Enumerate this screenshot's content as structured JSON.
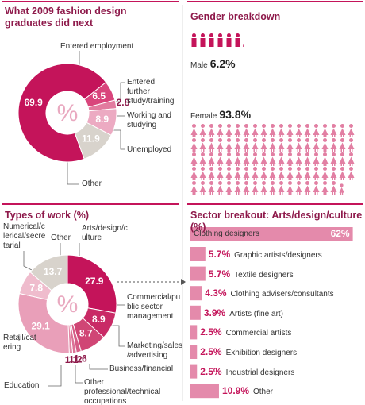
{
  "chart_data": [
    {
      "type": "donut",
      "title": "What 2009 fashion design graduates did next",
      "center_label": "%",
      "categories": [
        "Entered employment",
        "Entered further study/training",
        "Working and studying",
        "Unemployed",
        "Other"
      ],
      "values": [
        69.9,
        6.5,
        2.8,
        8.9,
        11.9
      ],
      "colors": [
        "#c4145a",
        "#d9457c",
        "#e27b9f",
        "#ecaac2",
        "#d8d3cc"
      ]
    },
    {
      "type": "pictogram",
      "title": "Gender breakdown",
      "categories": [
        "Male",
        "Female"
      ],
      "values": [
        6.2,
        93.8
      ],
      "value_labels": [
        "6.2%",
        "93.8%"
      ],
      "colors": [
        "#c4145a",
        "#e27fa3"
      ]
    },
    {
      "type": "donut",
      "title": "Types of work (%)",
      "center_label": "%",
      "categories": [
        "Arts/design/culture",
        "Commercial/public sector management",
        "Marketing/sales/advertising",
        "Business/financial",
        "Other professional/technical occupations",
        "Education",
        "Retail/catering",
        "Numerical/clerical/secretarial",
        "Other"
      ],
      "values": [
        27.9,
        8.9,
        8.7,
        1.6,
        1.2,
        1.1,
        29.1,
        7.8,
        13.7
      ],
      "colors": [
        "#c4145a",
        "#c92a66",
        "#d04675",
        "#d65d87",
        "#dc7296",
        "#e287a5",
        "#e99fb9",
        "#efbccd",
        "#d8d3cc"
      ]
    },
    {
      "type": "bar",
      "orientation": "horizontal",
      "title": "Sector breakout: Arts/design/culture (%)",
      "categories": [
        "Clothing designers",
        "Graphic artists/designers",
        "Textile designers",
        "Clothing advisers/consultants",
        "Artists (fine art)",
        "Commercial artists",
        "Exhibition designers",
        "Industrial designers",
        "Other"
      ],
      "values": [
        62,
        5.7,
        5.7,
        4.3,
        3.9,
        2.5,
        2.5,
        2.5,
        10.9
      ],
      "value_labels": [
        "62%",
        "5.7%",
        "5.7%",
        "4.3%",
        "3.9%",
        "2.5%",
        "2.5%",
        "2.5%",
        "10.9%"
      ],
      "color": "#e48aab"
    }
  ]
}
